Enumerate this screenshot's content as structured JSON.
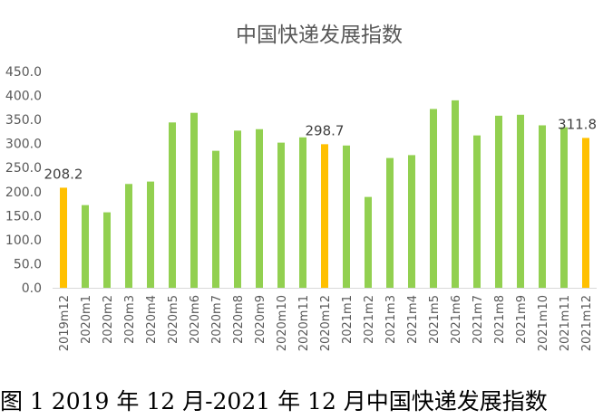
{
  "caption": "图 1 2019 年 12 月-2021 年 12 月中国快递发展指数",
  "colors": {
    "regular": "#92D050",
    "highlight": "#FFC000",
    "text": "#595959",
    "grid": "#D9D9D9"
  },
  "chart_data": {
    "type": "bar",
    "title": "中国快递发展指数",
    "xlabel": "",
    "ylabel": "",
    "ylim": [
      0,
      450
    ],
    "yticks": [
      "0.0",
      "50.0",
      "100.0",
      "150.0",
      "200.0",
      "250.0",
      "300.0",
      "350.0",
      "400.0",
      "450.0"
    ],
    "grid": false,
    "categories": [
      "2019m12",
      "2020m1",
      "2020m2",
      "2020m3",
      "2020m4",
      "2020m5",
      "2020m6",
      "2020m7",
      "2020m8",
      "2020m9",
      "2020m10",
      "2020m11",
      "2020m12",
      "2021m1",
      "2021m2",
      "2021m3",
      "2021m4",
      "2021m5",
      "2021m6",
      "2021m7",
      "2021m8",
      "2021m9",
      "2021m10",
      "2021m11",
      "2021m12"
    ],
    "values": [
      208.2,
      172,
      157,
      216,
      221,
      344,
      364,
      285,
      327,
      330,
      302,
      313,
      298.7,
      296,
      189,
      270,
      276,
      372,
      390,
      317,
      358,
      360,
      338,
      334,
      311.8
    ],
    "highlighted": [
      "2019m12",
      "2020m12",
      "2021m12"
    ],
    "data_labels": [
      {
        "category": "2019m12",
        "text": "208.2"
      },
      {
        "category": "2020m12",
        "text": "298.7"
      },
      {
        "category": "2021m12",
        "text": "311.8"
      }
    ]
  }
}
